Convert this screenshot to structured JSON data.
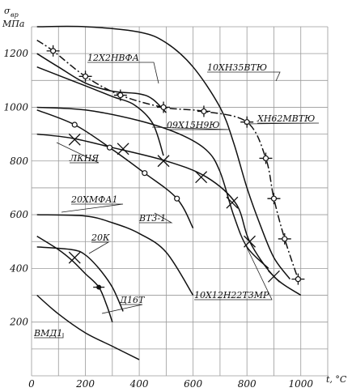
{
  "chart_data": {
    "type": "line",
    "xlabel": "t, °C",
    "ylabel_main": "σ",
    "ylabel_sub": "вр",
    "ylabel_unit": "МПа",
    "xlim": [
      0,
      1100
    ],
    "ylim": [
      0,
      1300
    ],
    "x_ticks": [
      0,
      200,
      400,
      600,
      800,
      1000
    ],
    "y_ticks": [
      200,
      400,
      600,
      800,
      1000,
      1200
    ],
    "series": [
      {
        "name": "10ХН35ВТЮ",
        "style": "solid",
        "marker": "none",
        "points": [
          [
            20,
            1300
          ],
          [
            200,
            1300
          ],
          [
            400,
            1280
          ],
          [
            500,
            1240
          ],
          [
            600,
            1150
          ],
          [
            700,
            1000
          ],
          [
            750,
            870
          ],
          [
            800,
            700
          ],
          [
            850,
            560
          ],
          [
            900,
            440
          ],
          [
            960,
            360
          ]
        ]
      },
      {
        "name": "ХН62МВТЮ",
        "style": "dashdot",
        "marker": "circle-cross",
        "points": [
          [
            20,
            1250
          ],
          [
            80,
            1210
          ],
          [
            200,
            1115
          ],
          [
            330,
            1045
          ],
          [
            490,
            1000
          ],
          [
            640,
            985
          ],
          [
            800,
            945
          ],
          [
            870,
            810
          ],
          [
            900,
            660
          ],
          [
            940,
            510
          ],
          [
            990,
            360
          ]
        ],
        "marker_points": [
          [
            80,
            1210
          ],
          [
            200,
            1115
          ],
          [
            330,
            1045
          ],
          [
            490,
            1000
          ],
          [
            640,
            985
          ],
          [
            800,
            945
          ],
          [
            870,
            810
          ],
          [
            900,
            660
          ],
          [
            940,
            510
          ],
          [
            990,
            360
          ]
        ]
      },
      {
        "name": "12Х2НВФА",
        "style": "solid",
        "marker": "none",
        "points": [
          [
            20,
            1200
          ],
          [
            100,
            1150
          ],
          [
            200,
            1090
          ],
          [
            300,
            1060
          ],
          [
            400,
            1050
          ],
          [
            450,
            1030
          ],
          [
            500,
            980
          ]
        ]
      },
      {
        "name": "09Х15Н9Ю",
        "style": "solid",
        "marker": "none",
        "points": [
          [
            20,
            1150
          ],
          [
            200,
            1080
          ],
          [
            300,
            1040
          ],
          [
            380,
            1010
          ],
          [
            450,
            940
          ],
          [
            490,
            820
          ]
        ]
      },
      {
        "name": "ЛКНЯ",
        "style": "solid",
        "marker": "none",
        "points": [
          [
            20,
            1000
          ],
          [
            200,
            990
          ],
          [
            400,
            950
          ],
          [
            550,
            900
          ],
          [
            650,
            840
          ],
          [
            700,
            760
          ],
          [
            750,
            600
          ],
          [
            800,
            480
          ],
          [
            880,
            400
          ]
        ]
      },
      {
        "name": "10Х12Н22Т3МР",
        "style": "solid",
        "marker": "cross",
        "points": [
          [
            20,
            900
          ],
          [
            150,
            885
          ],
          [
            300,
            850
          ],
          [
            500,
            800
          ],
          [
            650,
            740
          ],
          [
            760,
            640
          ],
          [
            810,
            500
          ],
          [
            900,
            370
          ],
          [
            1000,
            300
          ]
        ],
        "marker_points": [
          [
            160,
            880
          ],
          [
            340,
            845
          ],
          [
            490,
            800
          ],
          [
            630,
            740
          ],
          [
            745,
            645
          ],
          [
            810,
            500
          ],
          [
            900,
            370
          ]
        ]
      },
      {
        "name": "ВТ3-1",
        "style": "solid",
        "marker": "open-circle",
        "points": [
          [
            20,
            990
          ],
          [
            160,
            935
          ],
          [
            290,
            850
          ],
          [
            420,
            755
          ],
          [
            540,
            660
          ],
          [
            600,
            550
          ]
        ],
        "marker_points": [
          [
            160,
            935
          ],
          [
            290,
            850
          ],
          [
            420,
            755
          ],
          [
            540,
            660
          ]
        ]
      },
      {
        "name": "20ХМФА1",
        "style": "solid",
        "marker": "none",
        "points": [
          [
            20,
            600
          ],
          [
            200,
            595
          ],
          [
            300,
            570
          ],
          [
            400,
            530
          ],
          [
            500,
            460
          ],
          [
            600,
            300
          ]
        ]
      },
      {
        "name": "20К",
        "style": "solid",
        "marker": "cross",
        "points": [
          [
            20,
            480
          ],
          [
            150,
            470
          ],
          [
            200,
            450
          ],
          [
            250,
            400
          ],
          [
            300,
            330
          ],
          [
            340,
            240
          ]
        ],
        "marker_points": [
          [
            160,
            440
          ]
        ]
      },
      {
        "name": "Д16Т",
        "style": "solid",
        "marker": "dot",
        "points": [
          [
            20,
            520
          ],
          [
            100,
            470
          ],
          [
            150,
            430
          ],
          [
            200,
            380
          ],
          [
            250,
            330
          ],
          [
            280,
            260
          ],
          [
            300,
            200
          ]
        ],
        "marker_points": [
          [
            250,
            330
          ]
        ]
      },
      {
        "name": "ВМД1",
        "style": "solid",
        "marker": "none",
        "points": [
          [
            20,
            300
          ],
          [
            100,
            230
          ],
          [
            200,
            160
          ],
          [
            300,
            110
          ],
          [
            400,
            60
          ]
        ]
      }
    ]
  }
}
